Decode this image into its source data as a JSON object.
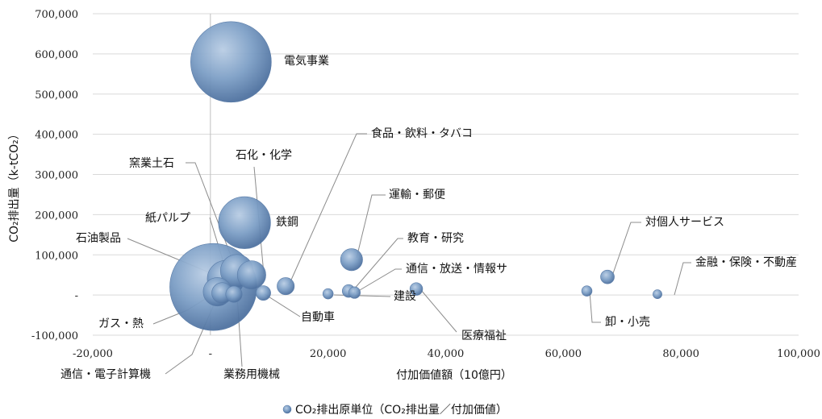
{
  "chart_data": {
    "type": "scatter",
    "subtype": "bubble",
    "xlabel": "付加価値額（10億円）",
    "ylabel": "CO₂排出量（k-tCO₂）",
    "xlim": [
      -20000,
      100000
    ],
    "ylim": [
      -100000,
      700000
    ],
    "x_ticks": [
      -20000,
      0,
      20000,
      40000,
      60000,
      80000,
      100000
    ],
    "x_tick_labels": [
      "-20,000",
      "-",
      "20,000",
      "40,000",
      "60,000",
      "80,000",
      "100,000"
    ],
    "y_ticks": [
      -100000,
      0,
      100000,
      200000,
      300000,
      400000,
      500000,
      600000,
      700000
    ],
    "y_tick_labels": [
      "-100,000",
      "-",
      "100,000",
      "200,000",
      "300,000",
      "400,000",
      "500,000",
      "600,000",
      "700,000"
    ],
    "grid": "horizontal",
    "legend": {
      "position": "bottom",
      "entry": "CO₂排出原単位（CO₂排出量／付加価値）"
    },
    "bubble_color": "#6e93bd",
    "series": [
      {
        "name": "CO₂排出原単位（CO₂排出量／付加価値）",
        "points": [
          {
            "label": "電気事業",
            "x": 3500,
            "y": 580000,
            "size": 12
          },
          {
            "label": "鉄鋼",
            "x": 5800,
            "y": 180000,
            "size": 5
          },
          {
            "label": "石化・化学",
            "x": 7000,
            "y": 50000,
            "size": 1.5
          },
          {
            "label": "窯業土石",
            "x": 4500,
            "y": 60000,
            "size": 2
          },
          {
            "label": "紙パルプ",
            "x": 2600,
            "y": 40000,
            "size": 2.5
          },
          {
            "label": "石油製品",
            "x": 500,
            "y": 20000,
            "size": 14
          },
          {
            "label": "ガス・熱",
            "x": 1200,
            "y": 8000,
            "size": 1.5
          },
          {
            "label": "通信・電子計算機",
            "x": 2000,
            "y": 5000,
            "size": 0.8
          },
          {
            "label": "業務用機械",
            "x": 4000,
            "y": 2000,
            "size": 0.5
          },
          {
            "label": "自動車",
            "x": 9000,
            "y": 5000,
            "size": 0.4
          },
          {
            "label": "食品・飲料・タバコ",
            "x": 12800,
            "y": 22000,
            "size": 0.55
          },
          {
            "label": "運輸・郵便",
            "x": 24000,
            "y": 88000,
            "size": 0.9
          },
          {
            "label": "教育・研究",
            "x": 23500,
            "y": 10000,
            "size": 0.3
          },
          {
            "label": "通信・放送・情報サ",
            "x": 24500,
            "y": 6000,
            "size": 0.25
          },
          {
            "label": "建設",
            "x": 20000,
            "y": 3000,
            "size": 0.2
          },
          {
            "label": "医療福祉",
            "x": 35000,
            "y": 15000,
            "size": 0.3
          },
          {
            "label": "対個人サービス",
            "x": 67500,
            "y": 45000,
            "size": 0.35
          },
          {
            "label": "卸・小売",
            "x": 64000,
            "y": 10000,
            "size": 0.2
          },
          {
            "label": "金融・保険・不動産",
            "x": 76000,
            "y": 2000,
            "size": 0.15
          }
        ]
      }
    ]
  }
}
